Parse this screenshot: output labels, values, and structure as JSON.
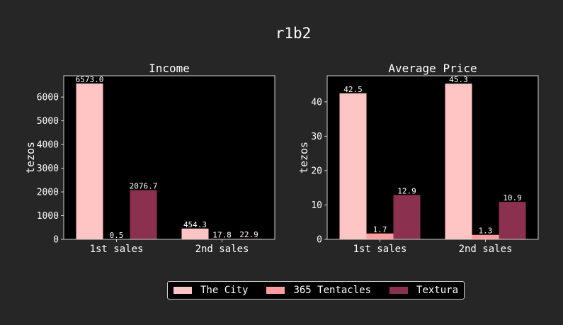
{
  "figure_title": "r1b2",
  "legend": {
    "entries": [
      "The City",
      "365 Tentacles",
      "Textura"
    ]
  },
  "colors": {
    "background": "#262626",
    "plot_background": "#000000",
    "axes": "#cfcfcf",
    "text": "#ffffff",
    "series": [
      "#ffc4c4",
      "#ff9d9d",
      "#8c304f"
    ]
  },
  "chart_data": [
    {
      "type": "bar",
      "title": "Income",
      "xlabel": "",
      "ylabel": "tezos",
      "categories": [
        "1st sales",
        "2nd sales"
      ],
      "ylim": [
        0,
        6900
      ],
      "yticks": [
        0,
        1000,
        2000,
        3000,
        4000,
        5000,
        6000
      ],
      "series": [
        {
          "name": "The City",
          "values": [
            6573.0,
            454.3
          ],
          "labels": [
            "6573.0",
            "454.3"
          ]
        },
        {
          "name": "365 Tentacles",
          "values": [
            0.5,
            17.8
          ],
          "labels": [
            "0.5",
            "17.8"
          ]
        },
        {
          "name": "Textura",
          "values": [
            2076.7,
            22.9
          ],
          "labels": [
            "2076.7",
            "22.9"
          ]
        }
      ]
    },
    {
      "type": "bar",
      "title": "Average Price",
      "xlabel": "",
      "ylabel": "tezos",
      "categories": [
        "1st sales",
        "2nd sales"
      ],
      "ylim": [
        0,
        47.6
      ],
      "yticks": [
        0,
        10,
        20,
        30,
        40
      ],
      "series": [
        {
          "name": "The City",
          "values": [
            42.5,
            45.3
          ],
          "labels": [
            "42.5",
            "45.3"
          ]
        },
        {
          "name": "365 Tentacles",
          "values": [
            1.7,
            1.3
          ],
          "labels": [
            "1.7",
            "1.3"
          ]
        },
        {
          "name": "Textura",
          "values": [
            12.9,
            10.9
          ],
          "labels": [
            "12.9",
            "10.9"
          ]
        }
      ]
    }
  ]
}
